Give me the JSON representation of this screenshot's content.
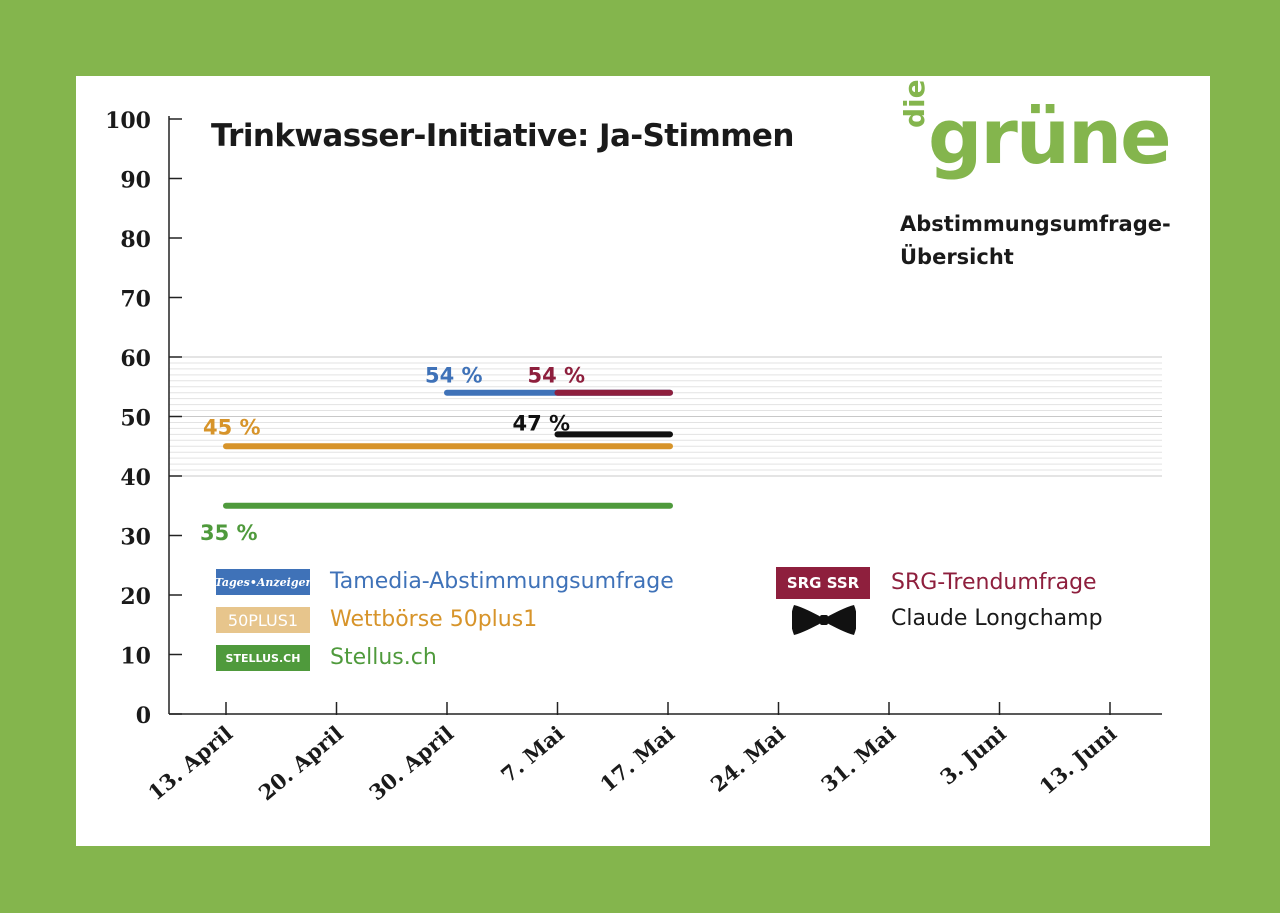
{
  "header": {
    "title": "Trinkwasser-Initiative: Ja-Stimmen",
    "logo_prefix": "die",
    "logo_main": "grüne",
    "subtitle_line1": "Abstimmungsumfrage-",
    "subtitle_line2": "Übersicht"
  },
  "colors": {
    "background": "#84b54d",
    "tamedia": "#3f72b8",
    "wettboerse": "#d7942a",
    "stellus": "#4f9a3c",
    "srg": "#8e1f3d",
    "longchamp": "#111111"
  },
  "legend": {
    "tamedia_label": "Tamedia-Abstimmungsumfrage",
    "tamedia_badge": "Tages•Anzeiger",
    "wettboerse_label": "Wettbörse 50plus1",
    "wettboerse_badge": "50PLUS1",
    "stellus_label": "Stellus.ch",
    "stellus_badge": "STELLUS.CH",
    "srg_label": "SRG-Trendumfrage",
    "srg_badge": "SRG SSR",
    "longchamp_label": "Claude Longchamp",
    "longchamp_icon": "bow-tie-icon"
  },
  "chart_data": {
    "type": "line",
    "title": "Trinkwasser-Initiative: Ja-Stimmen",
    "categories": [
      "13. April",
      "20. April",
      "30. April",
      "7. Mai",
      "17. Mai",
      "24. Mai",
      "31. Mai",
      "3. Juni",
      "13. Juni"
    ],
    "yticks": [
      0,
      10,
      20,
      30,
      40,
      50,
      60,
      70,
      80,
      90,
      100
    ],
    "ylim": [
      0,
      100
    ],
    "highlight_band": [
      40,
      60
    ],
    "series": [
      {
        "name": "Tamedia-Abstimmungsumfrage",
        "color": "#3f72b8",
        "value": 54,
        "from": "30. April",
        "to": "17. Mai",
        "label": "54 %"
      },
      {
        "name": "SRG-Trendumfrage",
        "color": "#8e1f3d",
        "value": 54,
        "from": "7. Mai",
        "to": "17. Mai",
        "label": "54 %"
      },
      {
        "name": "Claude Longchamp",
        "color": "#111111",
        "value": 47,
        "from": "7. Mai",
        "to": "17. Mai",
        "label": "47 %"
      },
      {
        "name": "Wettbörse 50plus1",
        "color": "#d7942a",
        "value": 45,
        "from": "13. April",
        "to": "17. Mai",
        "label": "45 %"
      },
      {
        "name": "Stellus.ch",
        "color": "#4f9a3c",
        "value": 35,
        "from": "13. April",
        "to": "17. Mai",
        "label": "35 %"
      }
    ]
  }
}
